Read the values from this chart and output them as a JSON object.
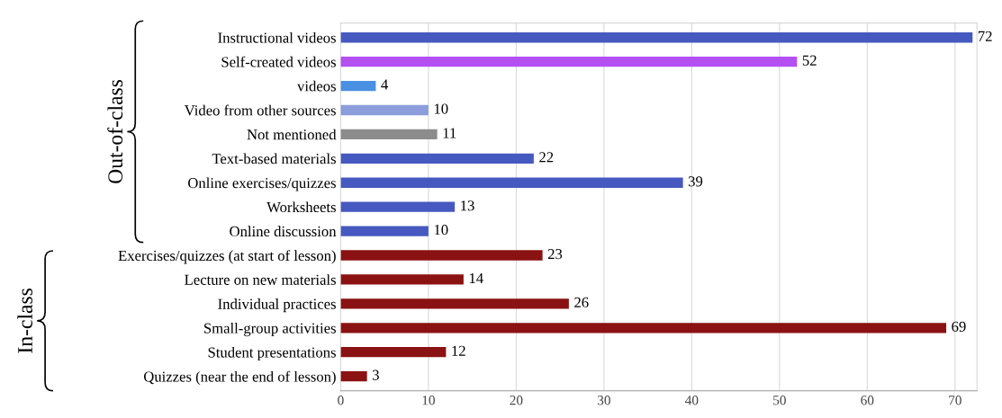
{
  "chart_data": {
    "type": "bar",
    "orientation": "horizontal",
    "categories": [
      "Instructional videos",
      "Self-created videos",
      "videos",
      "Video from other sources",
      "Not mentioned",
      "Text-based materials",
      "Online exercises/quizzes",
      "Worksheets",
      "Online discussion",
      "Exercises/quizzes (at start of lesson)",
      "Lecture on new materials",
      "Individual practices",
      "Small-group activities",
      "Student presentations",
      "Quizzes (near the end of lesson)"
    ],
    "values": [
      72,
      52,
      4,
      10,
      11,
      22,
      39,
      13,
      10,
      23,
      14,
      26,
      69,
      12,
      3
    ],
    "colors": [
      "#4659c0",
      "#b44ff2",
      "#4a90e2",
      "#8c9ddc",
      "#8c8c8c",
      "#4659c0",
      "#4659c0",
      "#4659c0",
      "#4659c0",
      "#8b1212",
      "#8b1212",
      "#8b1212",
      "#8b1212",
      "#8b1212",
      "#8b1212"
    ],
    "xlim": [
      0,
      72.5
    ],
    "xticks": [
      0,
      10,
      20,
      30,
      40,
      50,
      60,
      70
    ],
    "grid": "x",
    "data_labels": true,
    "annotations": [
      "Out-of-class",
      "In-class"
    ]
  }
}
